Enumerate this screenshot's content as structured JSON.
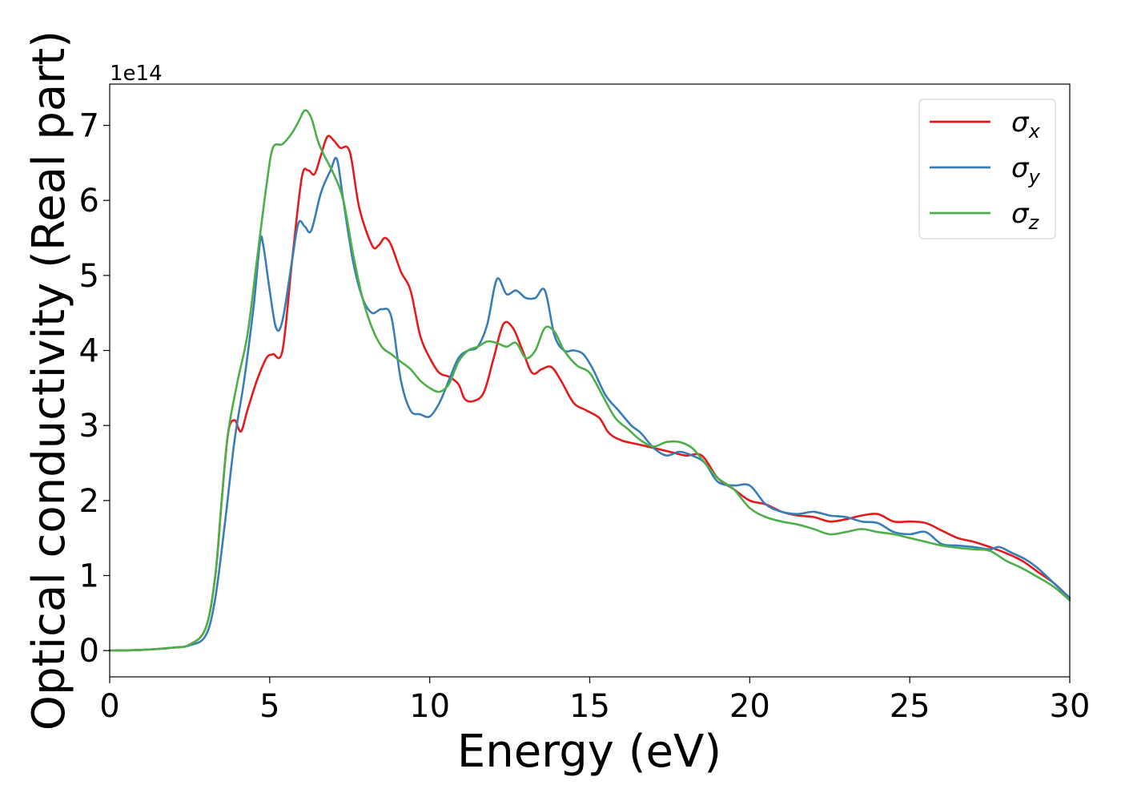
{
  "chart_data": {
    "type": "line",
    "title": "",
    "xlabel": "Energy (eV)",
    "ylabel": "Optical conductivity (Real part)",
    "y_scale_label": "1e14",
    "xlim": [
      0,
      30
    ],
    "ylim": [
      -0.35,
      7.55
    ],
    "x_ticks": [
      0,
      5,
      10,
      15,
      20,
      25,
      30
    ],
    "x_tick_labels": [
      "0",
      "5",
      "10",
      "15",
      "20",
      "25",
      "30"
    ],
    "y_ticks": [
      0,
      1,
      2,
      3,
      4,
      5,
      6,
      7
    ],
    "y_tick_labels": [
      "0",
      "1",
      "2",
      "3",
      "4",
      "5",
      "6",
      "7"
    ],
    "grid": false,
    "legend_position": "top-right",
    "series": [
      {
        "name": "σx",
        "label_base": "σ",
        "label_sub": "x",
        "color": "#e41a1c",
        "points": [
          [
            0,
            0
          ],
          [
            1,
            0.01
          ],
          [
            2,
            0.04
          ],
          [
            2.5,
            0.08
          ],
          [
            3,
            0.3
          ],
          [
            3.3,
            1.0
          ],
          [
            3.5,
            2.0
          ],
          [
            3.7,
            2.9
          ],
          [
            3.9,
            3.07
          ],
          [
            4.1,
            2.92
          ],
          [
            4.3,
            3.2
          ],
          [
            4.6,
            3.6
          ],
          [
            4.9,
            3.9
          ],
          [
            5.1,
            3.95
          ],
          [
            5.4,
            4.0
          ],
          [
            5.7,
            5.2
          ],
          [
            6.0,
            6.3
          ],
          [
            6.2,
            6.4
          ],
          [
            6.4,
            6.35
          ],
          [
            6.6,
            6.6
          ],
          [
            6.8,
            6.85
          ],
          [
            7.0,
            6.8
          ],
          [
            7.2,
            6.7
          ],
          [
            7.5,
            6.65
          ],
          [
            7.8,
            5.9
          ],
          [
            8.2,
            5.4
          ],
          [
            8.4,
            5.4
          ],
          [
            8.6,
            5.5
          ],
          [
            8.8,
            5.4
          ],
          [
            9.1,
            5.05
          ],
          [
            9.4,
            4.8
          ],
          [
            9.7,
            4.2
          ],
          [
            10.0,
            3.9
          ],
          [
            10.3,
            3.7
          ],
          [
            10.6,
            3.65
          ],
          [
            10.9,
            3.55
          ],
          [
            11.1,
            3.35
          ],
          [
            11.4,
            3.33
          ],
          [
            11.7,
            3.45
          ],
          [
            12.0,
            3.9
          ],
          [
            12.3,
            4.35
          ],
          [
            12.6,
            4.3
          ],
          [
            12.9,
            4.0
          ],
          [
            13.2,
            3.7
          ],
          [
            13.5,
            3.75
          ],
          [
            13.8,
            3.78
          ],
          [
            14.1,
            3.6
          ],
          [
            14.5,
            3.3
          ],
          [
            14.9,
            3.2
          ],
          [
            15.3,
            3.1
          ],
          [
            15.6,
            2.9
          ],
          [
            16.0,
            2.8
          ],
          [
            16.5,
            2.75
          ],
          [
            17.0,
            2.7
          ],
          [
            17.5,
            2.65
          ],
          [
            18.0,
            2.6
          ],
          [
            18.5,
            2.6
          ],
          [
            19.0,
            2.3
          ],
          [
            19.5,
            2.15
          ],
          [
            20.0,
            2.0
          ],
          [
            20.5,
            1.95
          ],
          [
            21.0,
            1.85
          ],
          [
            21.5,
            1.8
          ],
          [
            22.0,
            1.78
          ],
          [
            22.5,
            1.72
          ],
          [
            23.0,
            1.75
          ],
          [
            23.5,
            1.8
          ],
          [
            24.0,
            1.82
          ],
          [
            24.5,
            1.72
          ],
          [
            25.0,
            1.72
          ],
          [
            25.5,
            1.7
          ],
          [
            26.0,
            1.6
          ],
          [
            26.5,
            1.5
          ],
          [
            27.0,
            1.45
          ],
          [
            27.5,
            1.38
          ],
          [
            28.0,
            1.3
          ],
          [
            28.5,
            1.2
          ],
          [
            29.0,
            1.05
          ],
          [
            29.5,
            0.9
          ],
          [
            30.0,
            0.7
          ]
        ]
      },
      {
        "name": "σy",
        "label_base": "σ",
        "label_sub": "y",
        "color": "#377eb8",
        "points": [
          [
            0,
            0
          ],
          [
            1,
            0.01
          ],
          [
            2,
            0.04
          ],
          [
            2.5,
            0.07
          ],
          [
            3,
            0.2
          ],
          [
            3.3,
            0.7
          ],
          [
            3.6,
            1.7
          ],
          [
            3.9,
            2.8
          ],
          [
            4.2,
            3.6
          ],
          [
            4.5,
            4.6
          ],
          [
            4.7,
            5.45
          ],
          [
            4.8,
            5.4
          ],
          [
            5.0,
            4.8
          ],
          [
            5.2,
            4.3
          ],
          [
            5.4,
            4.4
          ],
          [
            5.7,
            5.2
          ],
          [
            5.9,
            5.7
          ],
          [
            6.1,
            5.65
          ],
          [
            6.3,
            5.6
          ],
          [
            6.6,
            6.1
          ],
          [
            6.9,
            6.4
          ],
          [
            7.1,
            6.55
          ],
          [
            7.3,
            6.0
          ],
          [
            7.6,
            5.2
          ],
          [
            7.9,
            4.7
          ],
          [
            8.2,
            4.5
          ],
          [
            8.5,
            4.55
          ],
          [
            8.8,
            4.45
          ],
          [
            9.1,
            3.6
          ],
          [
            9.4,
            3.2
          ],
          [
            9.7,
            3.15
          ],
          [
            10.0,
            3.12
          ],
          [
            10.3,
            3.3
          ],
          [
            10.6,
            3.6
          ],
          [
            10.9,
            3.9
          ],
          [
            11.2,
            4.0
          ],
          [
            11.5,
            4.05
          ],
          [
            11.8,
            4.35
          ],
          [
            12.1,
            4.95
          ],
          [
            12.4,
            4.75
          ],
          [
            12.7,
            4.8
          ],
          [
            13.0,
            4.7
          ],
          [
            13.3,
            4.7
          ],
          [
            13.6,
            4.8
          ],
          [
            13.9,
            4.2
          ],
          [
            14.2,
            4.0
          ],
          [
            14.5,
            4.0
          ],
          [
            14.8,
            3.95
          ],
          [
            15.1,
            3.75
          ],
          [
            15.5,
            3.4
          ],
          [
            15.9,
            3.2
          ],
          [
            16.3,
            3.0
          ],
          [
            16.6,
            2.9
          ],
          [
            17.0,
            2.7
          ],
          [
            17.4,
            2.6
          ],
          [
            17.8,
            2.65
          ],
          [
            18.2,
            2.6
          ],
          [
            18.6,
            2.5
          ],
          [
            19.0,
            2.25
          ],
          [
            19.5,
            2.2
          ],
          [
            20.0,
            2.2
          ],
          [
            20.5,
            1.95
          ],
          [
            21.0,
            1.85
          ],
          [
            21.5,
            1.82
          ],
          [
            22.0,
            1.85
          ],
          [
            22.5,
            1.8
          ],
          [
            23.0,
            1.78
          ],
          [
            23.5,
            1.72
          ],
          [
            24.0,
            1.7
          ],
          [
            24.5,
            1.58
          ],
          [
            25.0,
            1.55
          ],
          [
            25.5,
            1.58
          ],
          [
            26.0,
            1.42
          ],
          [
            26.5,
            1.4
          ],
          [
            27.0,
            1.38
          ],
          [
            27.5,
            1.35
          ],
          [
            27.8,
            1.38
          ],
          [
            28.2,
            1.3
          ],
          [
            28.6,
            1.22
          ],
          [
            29.0,
            1.1
          ],
          [
            29.5,
            0.9
          ],
          [
            30.0,
            0.7
          ]
        ]
      },
      {
        "name": "σz",
        "label_base": "σ",
        "label_sub": "z",
        "color": "#4daf4a",
        "points": [
          [
            0,
            0
          ],
          [
            1,
            0.01
          ],
          [
            2,
            0.04
          ],
          [
            2.5,
            0.08
          ],
          [
            3,
            0.3
          ],
          [
            3.3,
            1.0
          ],
          [
            3.5,
            2.0
          ],
          [
            3.7,
            2.9
          ],
          [
            4.0,
            3.6
          ],
          [
            4.3,
            4.2
          ],
          [
            4.6,
            5.2
          ],
          [
            4.9,
            6.2
          ],
          [
            5.1,
            6.7
          ],
          [
            5.4,
            6.75
          ],
          [
            5.7,
            6.9
          ],
          [
            5.9,
            7.05
          ],
          [
            6.1,
            7.2
          ],
          [
            6.3,
            7.1
          ],
          [
            6.5,
            6.8
          ],
          [
            6.7,
            6.6
          ],
          [
            7.0,
            6.35
          ],
          [
            7.3,
            6.0
          ],
          [
            7.6,
            5.3
          ],
          [
            7.9,
            4.7
          ],
          [
            8.2,
            4.3
          ],
          [
            8.5,
            4.05
          ],
          [
            8.8,
            3.95
          ],
          [
            9.1,
            3.85
          ],
          [
            9.4,
            3.75
          ],
          [
            9.7,
            3.6
          ],
          [
            10.0,
            3.5
          ],
          [
            10.3,
            3.45
          ],
          [
            10.6,
            3.55
          ],
          [
            10.9,
            3.85
          ],
          [
            11.2,
            4.0
          ],
          [
            11.5,
            4.05
          ],
          [
            11.8,
            4.12
          ],
          [
            12.1,
            4.1
          ],
          [
            12.4,
            4.05
          ],
          [
            12.7,
            4.1
          ],
          [
            13.0,
            3.9
          ],
          [
            13.3,
            4.0
          ],
          [
            13.6,
            4.3
          ],
          [
            13.9,
            4.25
          ],
          [
            14.2,
            4.0
          ],
          [
            14.6,
            3.8
          ],
          [
            15.0,
            3.7
          ],
          [
            15.4,
            3.4
          ],
          [
            15.8,
            3.1
          ],
          [
            16.2,
            2.95
          ],
          [
            16.6,
            2.8
          ],
          [
            17.0,
            2.72
          ],
          [
            17.4,
            2.78
          ],
          [
            17.8,
            2.78
          ],
          [
            18.2,
            2.7
          ],
          [
            18.6,
            2.5
          ],
          [
            19.0,
            2.3
          ],
          [
            19.5,
            2.15
          ],
          [
            20.0,
            1.9
          ],
          [
            20.5,
            1.78
          ],
          [
            21.0,
            1.72
          ],
          [
            21.5,
            1.68
          ],
          [
            22.0,
            1.62
          ],
          [
            22.5,
            1.55
          ],
          [
            23.0,
            1.58
          ],
          [
            23.5,
            1.62
          ],
          [
            24.0,
            1.58
          ],
          [
            24.5,
            1.55
          ],
          [
            25.0,
            1.5
          ],
          [
            25.5,
            1.45
          ],
          [
            26.0,
            1.4
          ],
          [
            26.5,
            1.37
          ],
          [
            27.0,
            1.35
          ],
          [
            27.5,
            1.33
          ],
          [
            28.0,
            1.2
          ],
          [
            28.5,
            1.1
          ],
          [
            29.0,
            0.98
          ],
          [
            29.5,
            0.85
          ],
          [
            30.0,
            0.67
          ]
        ]
      }
    ]
  }
}
